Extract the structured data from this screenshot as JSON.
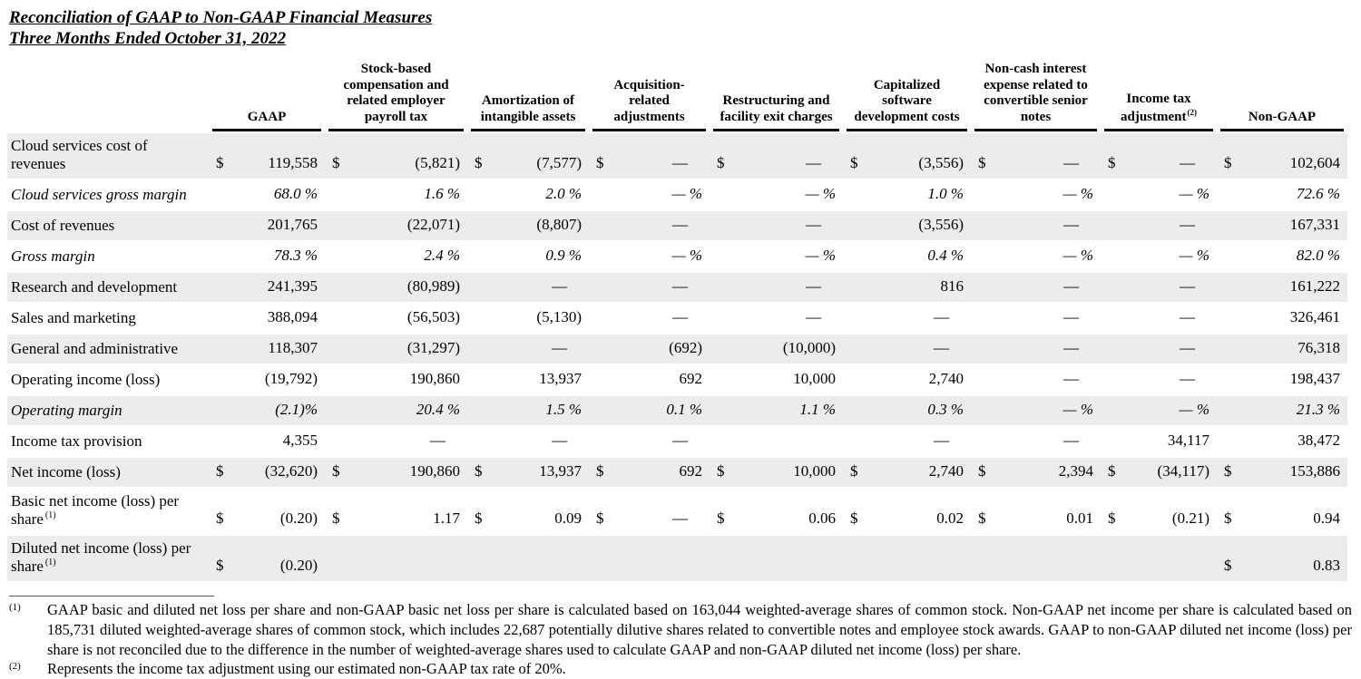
{
  "title": {
    "line1": "Reconciliation of GAAP to Non-GAAP Financial Measures",
    "line2": "Three Months Ended October 31, 2022"
  },
  "table": {
    "currency_symbol": "$",
    "columns": [
      {
        "label": "GAAP"
      },
      {
        "label": "Stock-based compensation and related employer payroll tax"
      },
      {
        "label": "Amortization of intangible assets"
      },
      {
        "label": "Acquisition-related adjustments"
      },
      {
        "label": "Restructuring and facility exit charges"
      },
      {
        "label": "Capitalized software development costs"
      },
      {
        "label": "Non-cash interest expense related to convertible senior notes"
      },
      {
        "label": "Income tax adjustment",
        "sup": "(2)"
      },
      {
        "label": "Non-GAAP"
      }
    ],
    "rows": [
      {
        "label": "Cloud services cost of revenues",
        "shaded": true,
        "italic": false,
        "dollar": true,
        "values": [
          "119,558",
          "(5,821)",
          "(7,577)",
          "—",
          "—",
          "(3,556)",
          "—",
          "—",
          "102,604"
        ]
      },
      {
        "label": "Cloud services gross margin",
        "shaded": false,
        "italic": true,
        "dollar": false,
        "values": [
          "68.0 %",
          "1.6 %",
          "2.0 %",
          "— %",
          "— %",
          "1.0 %",
          "— %",
          "— %",
          "72.6 %"
        ]
      },
      {
        "label": "Cost of revenues",
        "shaded": true,
        "italic": false,
        "dollar": false,
        "values": [
          "201,765",
          "(22,071)",
          "(8,807)",
          "—",
          "—",
          "(3,556)",
          "—",
          "—",
          "167,331"
        ]
      },
      {
        "label": "Gross margin",
        "shaded": false,
        "italic": true,
        "dollar": false,
        "values": [
          "78.3 %",
          "2.4 %",
          "0.9 %",
          "— %",
          "— %",
          "0.4 %",
          "— %",
          "— %",
          "82.0 %"
        ]
      },
      {
        "label": "Research and development",
        "shaded": true,
        "italic": false,
        "dollar": false,
        "values": [
          "241,395",
          "(80,989)",
          "—",
          "—",
          "—",
          "816",
          "—",
          "—",
          "161,222"
        ]
      },
      {
        "label": "Sales and marketing",
        "shaded": false,
        "italic": false,
        "dollar": false,
        "values": [
          "388,094",
          "(56,503)",
          "(5,130)",
          "—",
          "—",
          "—",
          "—",
          "—",
          "326,461"
        ]
      },
      {
        "label": "General and administrative",
        "shaded": true,
        "italic": false,
        "dollar": false,
        "values": [
          "118,307",
          "(31,297)",
          "—",
          "(692)",
          "(10,000)",
          "—",
          "—",
          "—",
          "76,318"
        ]
      },
      {
        "label": "Operating income (loss)",
        "shaded": false,
        "italic": false,
        "dollar": false,
        "values": [
          "(19,792)",
          "190,860",
          "13,937",
          "692",
          "10,000",
          "2,740",
          "—",
          "—",
          "198,437"
        ]
      },
      {
        "label": "Operating margin",
        "shaded": true,
        "italic": true,
        "dollar": false,
        "values": [
          "(2.1)%",
          "20.4 %",
          "1.5 %",
          "0.1 %",
          "1.1 %",
          "0.3 %",
          "— %",
          "— %",
          "21.3 %"
        ]
      },
      {
        "label": "Income tax provision",
        "shaded": false,
        "italic": false,
        "dollar": false,
        "values": [
          "4,355",
          "—",
          "—",
          "—",
          "",
          "—",
          "—",
          "34,117",
          "38,472"
        ]
      },
      {
        "label": "Net income (loss)",
        "shaded": true,
        "italic": false,
        "dollar": true,
        "values": [
          "(32,620)",
          "190,860",
          "13,937",
          "692",
          "10,000",
          "2,740",
          "2,394",
          "(34,117)",
          "153,886"
        ]
      },
      {
        "label": "Basic net income (loss) per share",
        "label_sup": "(1)",
        "shaded": false,
        "italic": false,
        "dollar": true,
        "values": [
          "(0.20)",
          "1.17",
          "0.09",
          "—",
          "0.06",
          "0.02",
          "0.01",
          "(0.21)",
          "0.94"
        ]
      },
      {
        "label": "Diluted net income (loss) per share",
        "label_sup": "(1)",
        "shaded": true,
        "italic": false,
        "dollar": true,
        "values": [
          "(0.20)",
          "",
          "",
          "",
          "",
          "",
          "",
          "",
          "0.83"
        ]
      }
    ]
  },
  "footnotes": [
    {
      "marker": "(1)",
      "text": "GAAP basic and diluted net loss per share and non-GAAP basic net loss per share is calculated based on 163,044 weighted-average shares of common stock. Non-GAAP net income per share is calculated based on 185,731 diluted weighted-average shares of common stock, which includes 22,687 potentially dilutive shares related to convertible notes and employee stock awards. GAAP to non-GAAP diluted net income (loss) per share is not reconciled due to the difference in the number of weighted-average shares used to calculate GAAP and non-GAAP diluted net income (loss) per share."
    },
    {
      "marker": "(2)",
      "text": "Represents the income tax adjustment using our estimated non-GAAP tax rate of 20%."
    }
  ]
}
